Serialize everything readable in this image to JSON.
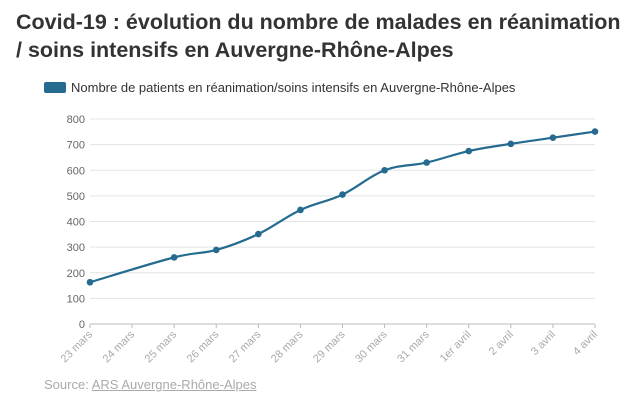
{
  "title": "Covid-19 : évolution du nombre de malades en réanimation / soins intensifs en Auvergne-Rhône-Alpes",
  "source": {
    "prefix": "Source: ",
    "link_text": "ARS Auvergne-Rhône-Alpes"
  },
  "colors": {
    "series": "#246b8f",
    "grid": "#e3e3e3",
    "axis": "#bbbbbb"
  },
  "chart_data": {
    "type": "line",
    "title": "Covid-19 : évolution du nombre de malades en réanimation / soins intensifs en Auvergne-Rhône-Alpes",
    "xlabel": "",
    "ylabel": "",
    "ylim": [
      0,
      800
    ],
    "yticks": [
      "0",
      "100",
      "200",
      "300",
      "400",
      "500",
      "600",
      "700",
      "800"
    ],
    "grid": true,
    "legend": "top-left",
    "categories": [
      "23 mars",
      "24 mars",
      "25 mars",
      "26 mars",
      "27 mars",
      "28 mars",
      "29 mars",
      "30 mars",
      "31 mars",
      "1er avril",
      "2 avril",
      "3 avril",
      "4 avril"
    ],
    "series": [
      {
        "name": "Nombre de patients en réanimation/soins intensifs en Auvergne-Rhône-Alpes",
        "values": [
          163,
          null,
          260,
          289,
          351,
          445,
          505,
          600,
          630,
          675,
          703,
          727,
          751
        ]
      }
    ]
  }
}
